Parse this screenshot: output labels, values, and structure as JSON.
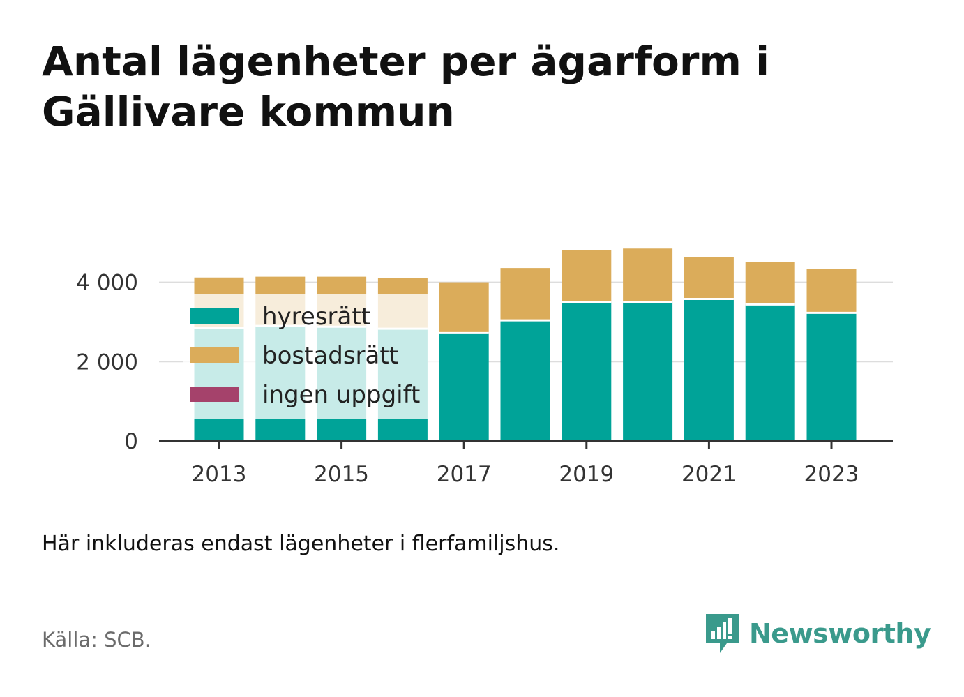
{
  "title": "Antal lägenheter per ägarform i Gällivare kommun",
  "note": "Här inkluderas endast lägenheter i flerfamiljshus.",
  "source": "Källa: SCB.",
  "brand": {
    "name": "Newsworthy",
    "icon": "newsworthy-logo-icon",
    "color": "#3a9a8c"
  },
  "chart_data": {
    "type": "bar",
    "stacked": true,
    "categories": [
      "2013",
      "2014",
      "2015",
      "2016",
      "2017",
      "2018",
      "2019",
      "2020",
      "2021",
      "2022",
      "2023"
    ],
    "x_tick_labels": [
      "2013",
      "2015",
      "2017",
      "2019",
      "2021",
      "2023"
    ],
    "y_ticks": [
      0,
      2000,
      4000
    ],
    "y_tick_labels": [
      "0",
      "2 000",
      "4 000"
    ],
    "ylim": [
      0,
      4960
    ],
    "grid": true,
    "legend_position": "top-left",
    "series": [
      {
        "name": "hyresrätt",
        "color": "#00a398",
        "values": [
          2850,
          2900,
          2880,
          2830,
          2720,
          3040,
          3500,
          3500,
          3580,
          3440,
          3230
        ]
      },
      {
        "name": "bostadsrätt",
        "color": "#dbac5a",
        "values": [
          1270,
          1240,
          1260,
          1270,
          1280,
          1320,
          1310,
          1350,
          1060,
          1080,
          1100
        ]
      },
      {
        "name": "ingen uppgift",
        "color": "#a5426b",
        "values": [
          0,
          0,
          0,
          0,
          0,
          0,
          0,
          0,
          0,
          0,
          0
        ]
      }
    ]
  }
}
